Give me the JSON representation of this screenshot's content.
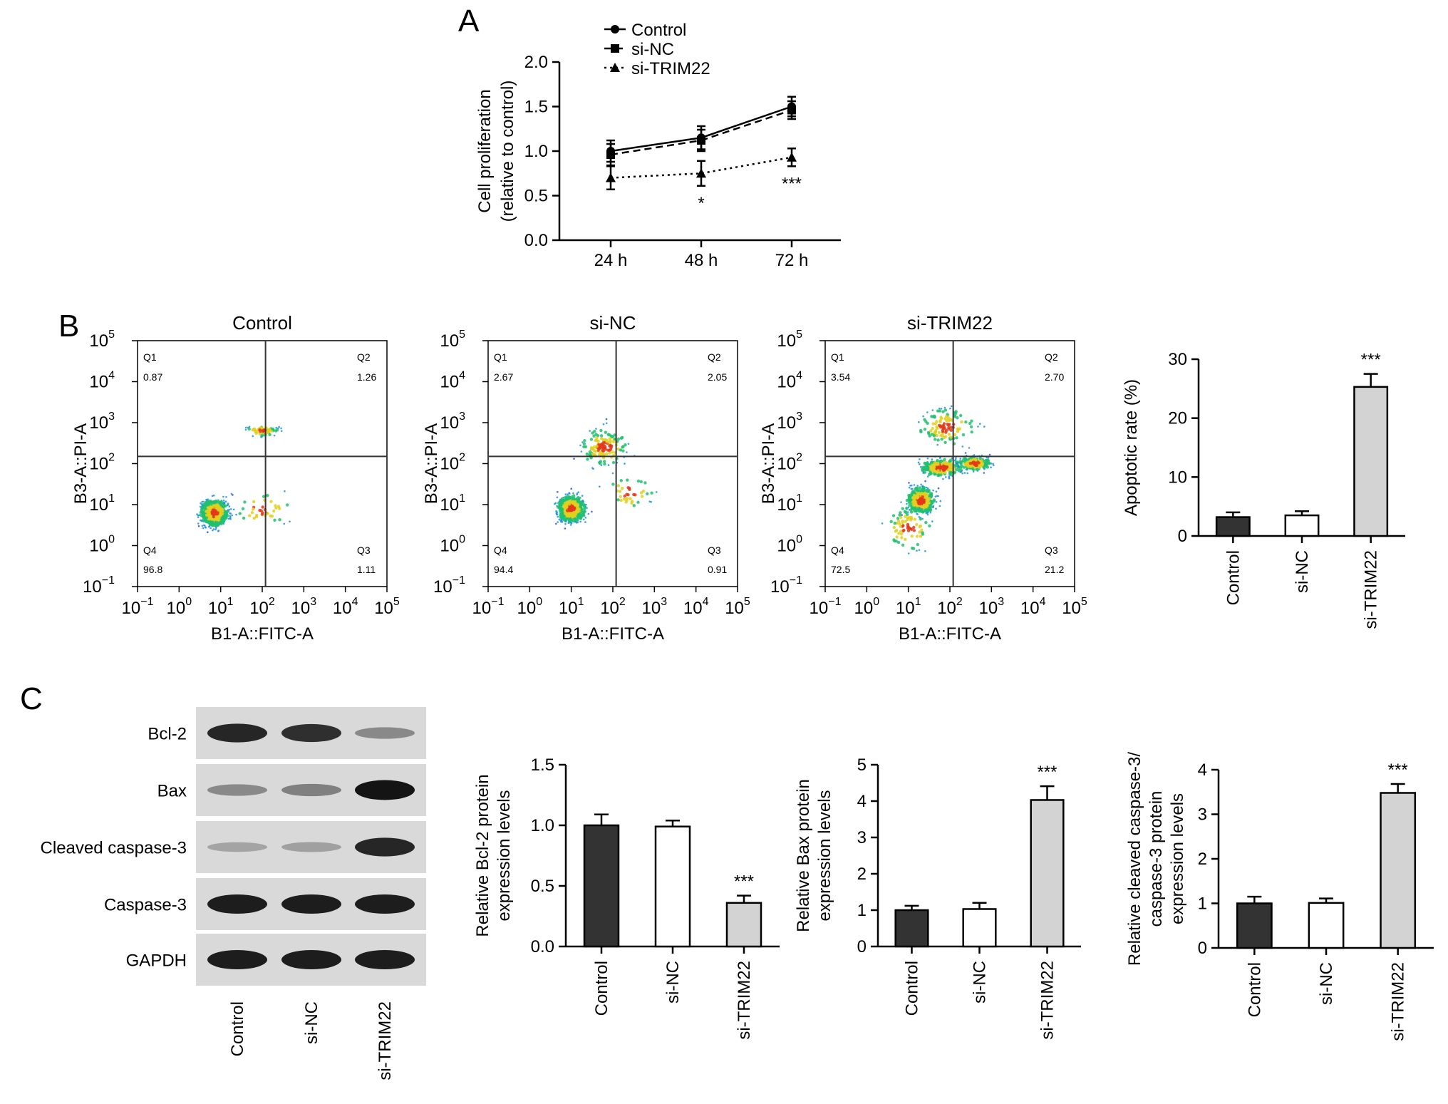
{
  "panels": {
    "A": "A",
    "B": "B",
    "C": "C"
  },
  "chart_data": [
    {
      "id": "A",
      "type": "line",
      "categories": [
        "24 h",
        "48 h",
        "72 h"
      ],
      "series": [
        {
          "name": "Control",
          "values": [
            1.0,
            1.15,
            1.5
          ],
          "errors": [
            0.12,
            0.13,
            0.11
          ],
          "marker": "circle",
          "dash": ""
        },
        {
          "name": "si-NC",
          "values": [
            0.96,
            1.12,
            1.46
          ],
          "errors": [
            0.12,
            0.12,
            0.1
          ],
          "marker": "square",
          "dash": "10,6"
        },
        {
          "name": "si-TRIM22",
          "values": [
            0.7,
            0.75,
            0.93
          ],
          "errors": [
            0.13,
            0.14,
            0.1
          ],
          "marker": "triangle",
          "dash": "3,5"
        }
      ],
      "ylabel": [
        "Cell proliferation",
        "(relative to control)"
      ],
      "ylim": [
        0,
        2.0
      ],
      "yticks": [
        "0.0",
        "0.5",
        "1.0",
        "1.5",
        "2.0"
      ],
      "annotations": [
        {
          "category": "48 h",
          "text": "*"
        },
        {
          "category": "72 h",
          "text": "***"
        }
      ]
    },
    {
      "id": "B-flow",
      "type": "scatter",
      "scale": "log",
      "xlabel": "B1-A::FITC-A",
      "ylabel": "B3-A::PI-A",
      "gate": {
        "x": 120,
        "y": 150
      },
      "plots": [
        {
          "title": "Control",
          "Q1": "0.87",
          "Q2": "1.26",
          "Q3": "1.11",
          "Q4": "96.8"
        },
        {
          "title": "si-NC",
          "Q1": "2.67",
          "Q2": "2.05",
          "Q3": "0.91",
          "Q4": "94.4"
        },
        {
          "title": "si-TRIM22",
          "Q1": "3.54",
          "Q2": "2.70",
          "Q3": "21.2",
          "Q4": "72.5"
        }
      ],
      "quadrant_labels": [
        "Q1",
        "Q2",
        "Q3",
        "Q4"
      ]
    },
    {
      "id": "B-bar",
      "type": "bar",
      "categories": [
        "Control",
        "si-NC",
        "si-TRIM22"
      ],
      "values": [
        3.2,
        3.5,
        25.3
      ],
      "errors": [
        0.8,
        0.7,
        2.2
      ],
      "colors": [
        "#333333",
        "#ffffff",
        "#d3d3d3"
      ],
      "ylabel": [
        "Apoptotic rate (%)"
      ],
      "ylim": [
        0,
        30
      ],
      "yticks": [
        "0",
        "10",
        "20",
        "30"
      ],
      "annotations": [
        {
          "category": "si-TRIM22",
          "text": "***"
        }
      ]
    },
    {
      "id": "C-bcl2",
      "type": "bar",
      "categories": [
        "Control",
        "si-NC",
        "si-TRIM22"
      ],
      "values": [
        1.0,
        0.99,
        0.36
      ],
      "errors": [
        0.09,
        0.05,
        0.06
      ],
      "colors": [
        "#333333",
        "#ffffff",
        "#d3d3d3"
      ],
      "ylabel": [
        "Relative Bcl-2 protein",
        "expression levels"
      ],
      "ylim": [
        0,
        1.5
      ],
      "yticks": [
        "0.0",
        "0.5",
        "1.0",
        "1.5"
      ],
      "annotations": [
        {
          "category": "si-TRIM22",
          "text": "***"
        }
      ]
    },
    {
      "id": "C-bax",
      "type": "bar",
      "categories": [
        "Control",
        "si-NC",
        "si-TRIM22"
      ],
      "values": [
        1.0,
        1.03,
        4.03
      ],
      "errors": [
        0.12,
        0.17,
        0.38
      ],
      "colors": [
        "#333333",
        "#ffffff",
        "#d3d3d3"
      ],
      "ylabel": [
        "Relative Bax protein",
        "expression levels"
      ],
      "ylim": [
        0,
        5
      ],
      "yticks": [
        "0",
        "1",
        "2",
        "3",
        "4",
        "5"
      ],
      "annotations": [
        {
          "category": "si-TRIM22",
          "text": "***"
        }
      ]
    },
    {
      "id": "C-casp3",
      "type": "bar",
      "categories": [
        "Control",
        "si-NC",
        "si-TRIM22"
      ],
      "values": [
        1.0,
        1.01,
        3.48
      ],
      "errors": [
        0.15,
        0.1,
        0.2
      ],
      "colors": [
        "#333333",
        "#ffffff",
        "#d3d3d3"
      ],
      "ylabel": [
        "Relative cleaved caspase-3/",
        "caspase-3 protein",
        "expression levels"
      ],
      "ylim": [
        0,
        4
      ],
      "yticks": [
        "0",
        "1",
        "2",
        "3",
        "4"
      ],
      "annotations": [
        {
          "category": "si-TRIM22",
          "text": "***"
        }
      ]
    }
  ],
  "blot": {
    "rows": [
      {
        "label": "Bcl-2",
        "intensities": [
          0.9,
          0.85,
          0.35
        ]
      },
      {
        "label": "Bax",
        "intensities": [
          0.35,
          0.4,
          1.0
        ]
      },
      {
        "label": "Cleaved caspase-3",
        "intensities": [
          0.2,
          0.22,
          0.9
        ]
      },
      {
        "label": "Caspase-3",
        "intensities": [
          0.95,
          0.95,
          0.95
        ]
      },
      {
        "label": "GAPDH",
        "intensities": [
          0.95,
          0.95,
          0.95
        ]
      }
    ],
    "lanes": [
      "Control",
      "si-NC",
      "si-TRIM22"
    ]
  }
}
